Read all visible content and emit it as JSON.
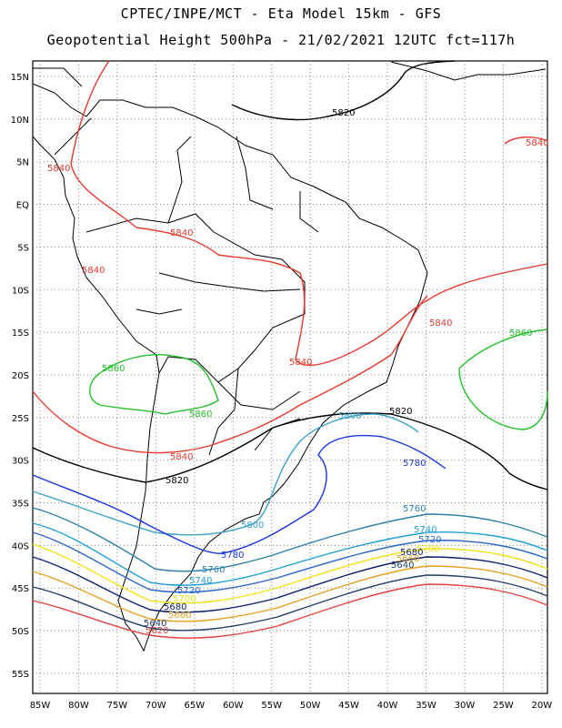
{
  "header": {
    "line1": "CPTEC/INPE/MCT -  Eta Model 15km - GFS",
    "line2": "Geopotential Height 500hPa - 21/02/2021 12UTC fct=117h"
  },
  "map": {
    "lat_labels": [
      "15N",
      "10N",
      "5N",
      "EQ",
      "5S",
      "10S",
      "15S",
      "20S",
      "25S",
      "30S",
      "35S",
      "40S",
      "45S",
      "50S",
      "55S"
    ],
    "lon_labels": [
      "85W",
      "80W",
      "75W",
      "70W",
      "65W",
      "60W",
      "55W",
      "50W",
      "45W",
      "40W",
      "35W",
      "30W",
      "25W",
      "20W"
    ],
    "grid": "dotted",
    "contours": [
      {
        "value": "5840",
        "color": "#e8392f"
      },
      {
        "value": "5820",
        "color": "#000000"
      },
      {
        "value": "5860",
        "color": "#22c02a"
      },
      {
        "value": "5800",
        "color": "#3aa2c8"
      },
      {
        "value": "5780",
        "color": "#1a33e0"
      },
      {
        "value": "5760",
        "color": "#2a7fa8"
      },
      {
        "value": "5740",
        "color": "#1f9fd8"
      },
      {
        "value": "5720",
        "color": "#2b66c8"
      },
      {
        "value": "5700",
        "color": "#f0e21a"
      },
      {
        "value": "5680",
        "color": "#0a1f6e"
      },
      {
        "value": "5660",
        "color": "#e8a020"
      },
      {
        "value": "5640",
        "color": "#20406a"
      },
      {
        "value": "5620",
        "color": "#e84040"
      }
    ]
  }
}
